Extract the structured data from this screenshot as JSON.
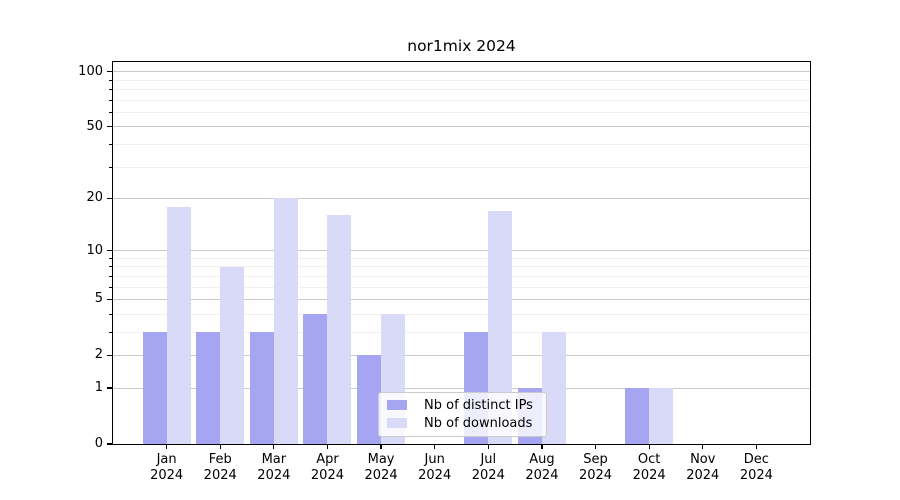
{
  "title": "nor1mix 2024",
  "chart_data": {
    "type": "bar",
    "title": "nor1mix 2024",
    "x_categories": [
      "Jan 2024",
      "Feb 2024",
      "Mar 2024",
      "Apr 2024",
      "May 2024",
      "Jun 2024",
      "Jul 2024",
      "Aug 2024",
      "Sep 2024",
      "Oct 2024",
      "Nov 2024",
      "Dec 2024"
    ],
    "series": [
      {
        "name": "Nb of distinct IPs",
        "color": "#a5a5f1",
        "values": [
          3,
          3,
          3,
          4,
          2,
          0,
          3,
          1,
          0,
          1,
          0,
          0
        ]
      },
      {
        "name": "Nb of downloads",
        "color": "#d9d9f8",
        "values": [
          18,
          8,
          20,
          16,
          4,
          0,
          17,
          3,
          0,
          1,
          0,
          0
        ]
      }
    ],
    "yscale": "log1p",
    "ylim": [
      0,
      113
    ],
    "yticks": [
      0,
      1,
      2,
      5,
      10,
      20,
      50,
      100
    ],
    "minor_yticks": [
      3,
      4,
      6,
      7,
      8,
      9,
      30,
      40,
      60,
      70,
      80,
      90
    ],
    "grid": "both",
    "legend_position": "lower-center"
  }
}
